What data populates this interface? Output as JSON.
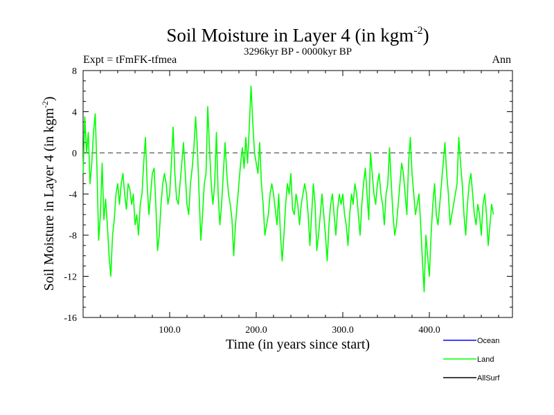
{
  "chart_data": {
    "type": "line",
    "title": "Soil Moisture in Layer 4 (in kgm",
    "title_sup": "-2",
    "title_close": ")",
    "subtitle": "3296kyr BP - 0000kyr BP",
    "expt_label": "Expt = tFmFK-tfmea",
    "season_label": "Ann",
    "xlabel": "Time (in years since start)",
    "ylabel": "Soil Moisture in Layer 4 (in kgm",
    "ylabel_sup": "-2",
    "ylabel_close": ")",
    "xlim": [
      0,
      496
    ],
    "ylim": [
      -16,
      8
    ],
    "x_ticks": [
      100,
      200,
      300,
      400
    ],
    "x_tick_labels": [
      "100.0",
      "200.0",
      "300.0",
      "400.0"
    ],
    "y_ticks": [
      8,
      4,
      0,
      -4,
      -8,
      -12,
      -16
    ],
    "y_tick_labels": [
      "8",
      "4",
      "0",
      "-4",
      "-8",
      "-12",
      "-16"
    ],
    "reference_line": 0,
    "colors": {
      "Ocean": "#0000ff",
      "Land": "#00ff00",
      "AllSurf": "#000000"
    },
    "series": [
      {
        "name": "Ocean",
        "values": []
      },
      {
        "name": "Land",
        "x_start": 0,
        "x_step": 2,
        "values": [
          -2,
          3.5,
          0,
          2,
          -3,
          -1,
          2,
          3.8,
          -1.5,
          -8.5,
          -6,
          -1,
          -6.5,
          -4.5,
          -7,
          -10,
          -12,
          -8,
          -6.5,
          -4,
          -3,
          -5,
          -3,
          -2,
          -4,
          -5.5,
          -3,
          -3.5,
          -5,
          -4,
          -7,
          -6,
          -8,
          -5,
          -4,
          -1,
          1.5,
          -3,
          -6,
          -4,
          -2,
          -1.5,
          -5,
          -9.5,
          -8,
          -5,
          -3,
          -2,
          -3,
          -5,
          -4,
          -1,
          2.5,
          -2,
          -4.5,
          -5,
          -3,
          -1,
          1,
          -2,
          -5,
          -6,
          -3,
          -1.5,
          0.5,
          3.5,
          0.5,
          -4,
          -8.5,
          -6,
          -3,
          -2,
          4.5,
          0.5,
          -3,
          -5,
          -3,
          2,
          -4,
          -7,
          -5,
          -2,
          1,
          -2,
          -4,
          -5,
          -6.5,
          -10,
          -7,
          -5,
          -3,
          -1,
          0.5,
          -1.5,
          1.5,
          -1,
          2.5,
          6.5,
          3,
          0,
          -1,
          -2,
          1,
          -3,
          -5,
          -8,
          -7,
          -6,
          -4,
          -3,
          -4,
          -5.5,
          -7,
          -4,
          -8,
          -10.5,
          -8,
          -5,
          -3,
          -4,
          -2,
          -5.5,
          -6,
          -4,
          -5,
          -7,
          -5,
          -4,
          -3,
          -4,
          -6,
          -9,
          -6,
          -3,
          -5,
          -9.5,
          -8,
          -6,
          -4,
          -6,
          -8,
          -10.5,
          -7,
          -5,
          -4,
          -6,
          -8,
          -5.5,
          -4,
          -5,
          -4,
          -6,
          -7,
          -9,
          -6,
          -4,
          -5,
          -3,
          -4,
          -6,
          -8,
          -5,
          -3,
          -1.5,
          -4,
          -6.5,
          0,
          -2,
          -4,
          -5,
          -3,
          -2,
          -4,
          -5,
          -7,
          -4,
          -3,
          0.5,
          -3,
          -6,
          -8,
          -7,
          -5,
          -3,
          -1,
          -2,
          -4,
          -6,
          -1,
          1.5,
          -2,
          -4,
          -6,
          -5,
          -4,
          -7,
          -10.5,
          -13.5,
          -8,
          -10,
          -12,
          -8,
          -5,
          -3,
          -6,
          -7,
          -5,
          -3,
          -1,
          1,
          -2,
          -4,
          -7,
          -6,
          -5,
          -4,
          -3,
          1.5,
          -1,
          -3,
          -6,
          -8,
          -5,
          -3,
          -2,
          -4,
          -6,
          -7,
          -5,
          -6,
          -8,
          -5,
          -4,
          -6,
          -9,
          -7,
          -5,
          -6
        ]
      },
      {
        "name": "AllSurf",
        "values": []
      }
    ],
    "legend": {
      "placement": "bottom-right",
      "entries": [
        "Ocean",
        "Land",
        "AllSurf"
      ]
    }
  }
}
